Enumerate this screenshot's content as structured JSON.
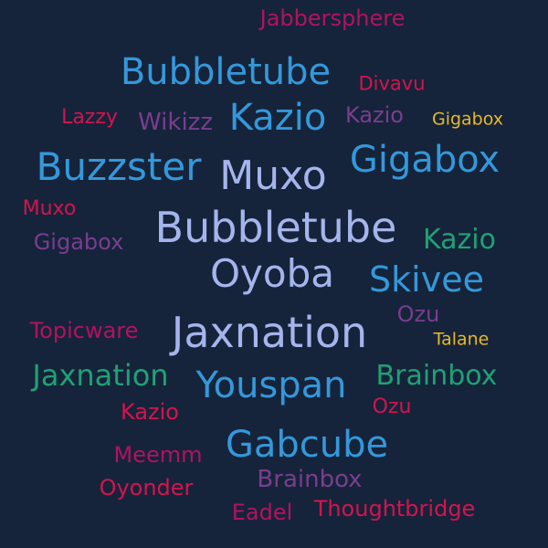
{
  "colors": {
    "background": "#15243a",
    "crimson": "#d4144f",
    "magenta": "#b3125f",
    "blue": "#3498db",
    "periwinkle": "#a5b4ec",
    "purple": "#7a3d8f",
    "gold": "#e8b82a",
    "green": "#1fa176"
  },
  "words": [
    {
      "text": "Jabbersphere",
      "color": "#b3125f"
    },
    {
      "text": "Bubbletube",
      "color": "#3498db"
    },
    {
      "text": "Divavu",
      "color": "#d4144f"
    },
    {
      "text": "Lazzy",
      "color": "#d4144f"
    },
    {
      "text": "Wikizz",
      "color": "#7a3d8f"
    },
    {
      "text": "Kazio",
      "color": "#3498db"
    },
    {
      "text": "Kazio",
      "color": "#7a3d8f"
    },
    {
      "text": "Gigabox",
      "color": "#e8b82a"
    },
    {
      "text": "Buzzster",
      "color": "#3498db"
    },
    {
      "text": "Muxo",
      "color": "#a5b4ec"
    },
    {
      "text": "Gigabox",
      "color": "#3498db"
    },
    {
      "text": "Muxo",
      "color": "#d4144f"
    },
    {
      "text": "Gigabox",
      "color": "#7a3d8f"
    },
    {
      "text": "Bubbletube",
      "color": "#a5b4ec"
    },
    {
      "text": "Kazio",
      "color": "#1fa176"
    },
    {
      "text": "Oyoba",
      "color": "#a5b4ec"
    },
    {
      "text": "Skivee",
      "color": "#3498db"
    },
    {
      "text": "Ozu",
      "color": "#7a3d8f"
    },
    {
      "text": "Topicware",
      "color": "#b3125f"
    },
    {
      "text": "Jaxnation",
      "color": "#a5b4ec"
    },
    {
      "text": "Talane",
      "color": "#e8b82a"
    },
    {
      "text": "Jaxnation",
      "color": "#1fa176"
    },
    {
      "text": "Youspan",
      "color": "#3498db"
    },
    {
      "text": "Brainbox",
      "color": "#1fa176"
    },
    {
      "text": "Kazio",
      "color": "#d4144f"
    },
    {
      "text": "Ozu",
      "color": "#d4144f"
    },
    {
      "text": "Gabcube",
      "color": "#3498db"
    },
    {
      "text": "Meemm",
      "color": "#b3125f"
    },
    {
      "text": "Brainbox",
      "color": "#7a3d8f"
    },
    {
      "text": "Oyonder",
      "color": "#d4144f"
    },
    {
      "text": "Eadel",
      "color": "#b3125f"
    },
    {
      "text": "Thoughtbridge",
      "color": "#d4144f"
    }
  ]
}
